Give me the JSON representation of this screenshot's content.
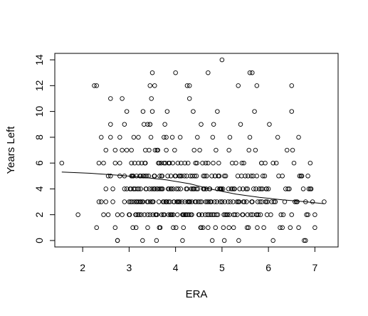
{
  "chart_data": {
    "type": "scatter",
    "title": "",
    "xlabel": "ERA",
    "ylabel": "Years Left",
    "xlim": [
      1.4,
      7.5
    ],
    "ylim": [
      -0.5,
      14.5
    ],
    "x_ticks": [
      2,
      3,
      4,
      5,
      6,
      7
    ],
    "y_ticks": [
      0,
      2,
      4,
      6,
      8,
      10,
      12,
      14
    ],
    "grid": false,
    "legend": "none",
    "marker": "open-circle",
    "point_color": "#000000",
    "trend_line": {
      "x": [
        1.55,
        2.2,
        2.8,
        3.3,
        3.8,
        4.3,
        4.8,
        5.3,
        5.8,
        6.3,
        6.8,
        7.2
      ],
      "y": [
        5.3,
        5.2,
        5.05,
        4.9,
        4.7,
        4.4,
        3.95,
        3.6,
        3.35,
        3.15,
        3.0,
        2.85
      ]
    },
    "points": {
      "x": [
        1.55,
        1.9,
        2.25,
        2.3,
        2.35,
        2.4,
        2.45,
        2.5,
        2.55,
        2.6,
        2.65,
        2.7,
        2.75,
        2.8,
        2.85,
        2.9,
        2.95,
        2.6,
        2.7,
        2.85,
        2.75,
        2.95,
        2.5,
        2.85,
        2.9,
        2.55,
        2.65,
        2.8,
        2.45,
        2.35,
        2.4,
        2.6,
        2.9,
        2.95,
        2.7,
        2.6,
        2.8,
        2.5,
        2.9,
        2.75,
        3.0,
        3.05,
        3.1,
        3.15,
        3.2,
        3.25,
        3.3,
        3.35,
        3.4,
        3.45,
        3.5,
        3.55,
        3.6,
        3.65,
        3.7,
        3.75,
        3.8,
        3.85,
        3.9,
        3.95,
        3.0,
        3.05,
        3.1,
        3.15,
        3.2,
        3.25,
        3.3,
        3.35,
        3.4,
        3.45,
        3.5,
        3.55,
        3.6,
        3.65,
        3.7,
        3.75,
        3.8,
        3.85,
        3.9,
        3.95,
        3.02,
        3.12,
        3.22,
        3.32,
        3.42,
        3.52,
        3.62,
        3.72,
        3.82,
        3.92,
        3.07,
        3.17,
        3.27,
        3.37,
        3.47,
        3.57,
        3.67,
        3.77,
        3.87,
        3.97,
        3.03,
        3.13,
        3.23,
        3.33,
        3.43,
        3.53,
        3.63,
        3.73,
        3.83,
        3.93,
        3.08,
        3.18,
        3.28,
        3.38,
        3.48,
        3.58,
        3.68,
        3.78,
        3.88,
        3.98,
        3.04,
        3.14,
        3.24,
        3.34,
        3.44,
        3.54,
        3.64,
        3.74,
        3.84,
        3.94,
        3.06,
        3.16,
        3.26,
        3.36,
        3.46,
        3.56,
        3.66,
        3.76,
        3.86,
        3.96,
        3.01,
        3.11,
        3.21,
        3.31,
        3.41,
        3.51,
        3.61,
        3.71,
        3.81,
        3.91,
        3.09,
        3.19,
        3.29,
        3.39,
        3.49,
        3.59,
        3.69,
        3.79,
        3.89,
        3.99,
        3.05,
        3.25,
        3.45,
        3.65,
        3.85,
        3.15,
        3.35,
        3.55,
        3.75,
        3.95,
        3.1,
        3.3,
        3.5,
        3.7,
        3.9,
        3.2,
        3.4,
        3.6,
        3.8,
        4.0,
        4.0,
        4.05,
        4.1,
        4.15,
        4.2,
        4.25,
        4.3,
        4.35,
        4.4,
        4.45,
        4.5,
        4.55,
        4.6,
        4.65,
        4.7,
        4.75,
        4.8,
        4.85,
        4.9,
        4.95,
        4.02,
        4.12,
        4.22,
        4.32,
        4.42,
        4.52,
        4.62,
        4.72,
        4.82,
        4.92,
        4.07,
        4.17,
        4.27,
        4.37,
        4.47,
        4.57,
        4.67,
        4.77,
        4.87,
        4.97,
        4.03,
        4.13,
        4.23,
        4.33,
        4.43,
        4.53,
        4.63,
        4.73,
        4.83,
        4.93,
        4.08,
        4.18,
        4.28,
        4.38,
        4.48,
        4.58,
        4.68,
        4.78,
        4.88,
        4.98,
        4.04,
        4.14,
        4.24,
        4.34,
        4.44,
        4.54,
        4.64,
        4.74,
        4.84,
        4.94,
        4.06,
        4.16,
        4.26,
        4.36,
        4.46,
        4.56,
        4.66,
        4.76,
        4.86,
        4.96,
        4.01,
        4.11,
        4.21,
        4.31,
        4.41,
        4.51,
        4.61,
        4.71,
        4.81,
        4.91,
        4.09,
        4.19,
        4.29,
        4.39,
        4.49,
        4.59,
        4.69,
        4.79,
        4.89,
        4.99,
        4.05,
        4.25,
        4.45,
        4.65,
        4.85,
        4.15,
        4.35,
        4.55,
        4.75,
        4.95,
        4.1,
        4.3,
        4.5,
        4.7,
        4.9,
        4.2,
        4.4,
        4.6,
        4.8,
        5.0,
        5.0,
        5.05,
        5.1,
        5.15,
        5.2,
        5.25,
        5.3,
        5.35,
        5.4,
        5.45,
        5.5,
        5.55,
        5.6,
        5.65,
        5.7,
        5.75,
        5.8,
        5.85,
        5.9,
        5.95,
        5.02,
        5.12,
        5.22,
        5.32,
        5.42,
        5.52,
        5.62,
        5.72,
        5.82,
        5.92,
        5.07,
        5.17,
        5.27,
        5.37,
        5.47,
        5.57,
        5.67,
        5.77,
        5.87,
        5.97,
        5.03,
        5.13,
        5.23,
        5.33,
        5.43,
        5.53,
        5.63,
        5.73,
        5.83,
        5.93,
        5.08,
        5.18,
        5.28,
        5.38,
        5.48,
        5.58,
        5.68,
        5.78,
        5.88,
        5.98,
        5.04,
        5.14,
        5.24,
        5.34,
        5.44,
        5.54,
        5.64,
        5.74,
        5.84,
        5.94,
        5.06,
        5.16,
        5.26,
        5.36,
        5.46,
        5.56,
        5.66,
        5.76,
        5.86,
        5.96,
        5.05,
        5.25,
        5.45,
        5.65,
        5.85,
        5.15,
        5.35,
        5.55,
        5.75,
        5.95,
        6.0,
        6.05,
        6.1,
        6.15,
        6.2,
        6.25,
        6.3,
        6.35,
        6.4,
        6.45,
        6.5,
        6.55,
        6.6,
        6.65,
        6.7,
        6.75,
        6.8,
        6.85,
        6.9,
        6.95,
        6.02,
        6.12,
        6.22,
        6.32,
        6.42,
        6.52,
        6.62,
        6.72,
        6.82,
        6.92,
        6.07,
        6.17,
        6.27,
        6.37,
        6.47,
        6.57,
        6.67,
        6.77,
        6.87,
        7.0,
        7.2,
        6.85,
        6.9,
        7.0,
        6.1,
        6.3,
        6.5,
        6.8,
        6.65,
        3.5,
        3.45,
        4.0,
        4.25,
        4.7,
        5.0,
        5.6,
        5.65,
        2.3,
        6.5,
        5.35,
        3.55,
        4.3,
        5.75
      ],
      "y": [
        6,
        2,
        12,
        1,
        3,
        8,
        6,
        4,
        5,
        9,
        3,
        6,
        2,
        8,
        11,
        5,
        7,
        11,
        1,
        2,
        0,
        4,
        7,
        7,
        3,
        2,
        4,
        5,
        2,
        6,
        3,
        8,
        9,
        10,
        7,
        5,
        6,
        3,
        4,
        0,
        2,
        7,
        4,
        1,
        8,
        5,
        3,
        6,
        9,
        2,
        10,
        4,
        7,
        1,
        5,
        3,
        8,
        6,
        2,
        4,
        3,
        5,
        8,
        2,
        6,
        4,
        10,
        7,
        1,
        9,
        3,
        5,
        2,
        6,
        4,
        8,
        7,
        3,
        5,
        1,
        4,
        6,
        2,
        9,
        5,
        3,
        7,
        4,
        10,
        2,
        5,
        3,
        6,
        4,
        8,
        2,
        1,
        9,
        6,
        3,
        3,
        4,
        5,
        2,
        7,
        4,
        6,
        3,
        5,
        8,
        1,
        4,
        3,
        5,
        11,
        2,
        4,
        6,
        3,
        7,
        4,
        2,
        3,
        6,
        4,
        5,
        3,
        2,
        4,
        6,
        3,
        5,
        2,
        4,
        3,
        7,
        5,
        2,
        4,
        3,
        2,
        3,
        4,
        5,
        3,
        2,
        4,
        5,
        3,
        4,
        5,
        2,
        0,
        3,
        4,
        0,
        6,
        3,
        2,
        5,
        6,
        3,
        9,
        4,
        2,
        3,
        5,
        4,
        6,
        2,
        4,
        5,
        3,
        2,
        4,
        3,
        2,
        4,
        3,
        5,
        5,
        3,
        8,
        2,
        6,
        4,
        11,
        3,
        7,
        5,
        2,
        9,
        4,
        6,
        1,
        3,
        8,
        5,
        10,
        4,
        4,
        6,
        2,
        5,
        3,
        7,
        4,
        2,
        9,
        5,
        3,
        1,
        6,
        4,
        8,
        2,
        5,
        3,
        7,
        4,
        3,
        5,
        4,
        2,
        6,
        3,
        5,
        4,
        2,
        6,
        5,
        2,
        3,
        10,
        4,
        6,
        3,
        5,
        2,
        4,
        2,
        3,
        5,
        4,
        3,
        1,
        2,
        4,
        3,
        5,
        4,
        2,
        3,
        5,
        6,
        3,
        4,
        2,
        1,
        3,
        1,
        4,
        2,
        3,
        5,
        2,
        4,
        3,
        6,
        2,
        3,
        5,
        2,
        4,
        3,
        1,
        2,
        0,
        3,
        4,
        6,
        2,
        4,
        3,
        5,
        0,
        2,
        1,
        3,
        4,
        5,
        3,
        2,
        6,
        4,
        3,
        4,
        5,
        2,
        3,
        3,
        5,
        2,
        7,
        4,
        1,
        6,
        3,
        9,
        2,
        5,
        4,
        8,
        3,
        10,
        2,
        4,
        6,
        1,
        3,
        4,
        2,
        6,
        3,
        5,
        4,
        2,
        7,
        3,
        5,
        2,
        8,
        4,
        3,
        6,
        1,
        5,
        3,
        4,
        2,
        1,
        3,
        4,
        2,
        6,
        3,
        5,
        4,
        2,
        6,
        5,
        3,
        2,
        4,
        3,
        7,
        4,
        2,
        5,
        3,
        2,
        4,
        3,
        5,
        2,
        1,
        3,
        2,
        4,
        3,
        3,
        2,
        4,
        0,
        3,
        5,
        2,
        1,
        3,
        4,
        0,
        2,
        4,
        3,
        6,
        1,
        3,
        2,
        5,
        4,
        4,
        2,
        6,
        3,
        8,
        1,
        5,
        3,
        7,
        4,
        2,
        6,
        3,
        1,
        5,
        4,
        3,
        2,
        4,
        3,
        9,
        3,
        5,
        2,
        4,
        7,
        3,
        5,
        2,
        4,
        3,
        6,
        2,
        4,
        1,
        3,
        5,
        0,
        4,
        1,
        3,
        5,
        6,
        2,
        0,
        1,
        10,
        0,
        8,
        13,
        12,
        13,
        12,
        13,
        14,
        13,
        13,
        12,
        12,
        12,
        12,
        12,
        12
      ]
    }
  }
}
